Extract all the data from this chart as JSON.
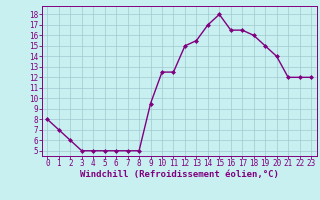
{
  "x": [
    0,
    1,
    2,
    3,
    4,
    5,
    6,
    7,
    8,
    9,
    10,
    11,
    12,
    13,
    14,
    15,
    16,
    17,
    18,
    19,
    20,
    21,
    22,
    23
  ],
  "y": [
    8.0,
    7.0,
    6.0,
    5.0,
    5.0,
    5.0,
    5.0,
    5.0,
    5.0,
    9.5,
    12.5,
    12.5,
    15.0,
    15.5,
    17.0,
    18.0,
    16.5,
    16.5,
    16.0,
    15.0,
    14.0,
    12.0,
    12.0,
    12.0
  ],
  "line_color": "#800080",
  "marker": "D",
  "marker_size": 2,
  "bg_color": "#c8f0f0",
  "grid_color": "#a0c8d0",
  "tick_color": "#800080",
  "label_color": "#800080",
  "xlabel": "Windchill (Refroidissement éolien,°C)",
  "xlim": [
    -0.5,
    23.5
  ],
  "ylim": [
    4.5,
    18.8
  ],
  "yticks": [
    5,
    6,
    7,
    8,
    9,
    10,
    11,
    12,
    13,
    14,
    15,
    16,
    17,
    18
  ],
  "xticks": [
    0,
    1,
    2,
    3,
    4,
    5,
    6,
    7,
    8,
    9,
    10,
    11,
    12,
    13,
    14,
    15,
    16,
    17,
    18,
    19,
    20,
    21,
    22,
    23
  ],
  "line_width": 1.0,
  "tick_fontsize": 5.5,
  "xlabel_fontsize": 6.5
}
